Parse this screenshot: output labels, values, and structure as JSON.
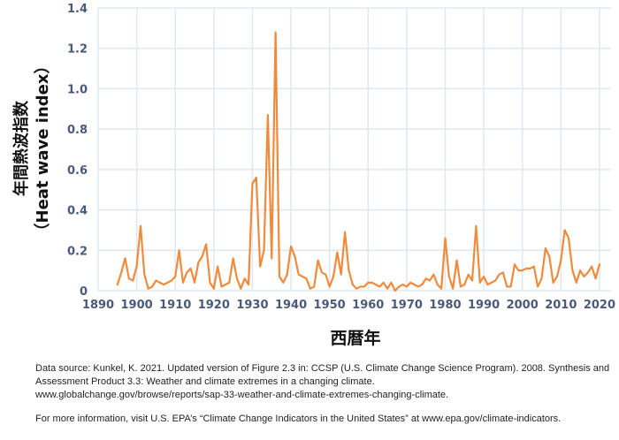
{
  "chart_data": {
    "type": "line",
    "title": "",
    "xlabel": "西暦年",
    "ylabel_line1": "年間熱波指数",
    "ylabel_line2": "（Heat wave index）",
    "xlim": [
      1890,
      2023
    ],
    "ylim": [
      0,
      1.4
    ],
    "xticks": [
      1890,
      1900,
      1910,
      1920,
      1930,
      1940,
      1950,
      1960,
      1970,
      1980,
      1990,
      2000,
      2010,
      2020
    ],
    "yticks": [
      0,
      0.2,
      0.4,
      0.6,
      0.8,
      1.0,
      1.2,
      1.4
    ],
    "ytick_labels": [
      "0",
      "0.2",
      "0.4",
      "0.6",
      "0.8",
      "1.0",
      "1.2",
      "1.4"
    ],
    "grid": true,
    "line_color": "#f08a3c",
    "grid_color": "#dfe8f0",
    "axis_label_color": "#4a5a7a",
    "x": [
      1895,
      1896,
      1897,
      1898,
      1899,
      1900,
      1901,
      1902,
      1903,
      1904,
      1905,
      1906,
      1907,
      1908,
      1909,
      1910,
      1911,
      1912,
      1913,
      1914,
      1915,
      1916,
      1917,
      1918,
      1919,
      1920,
      1921,
      1922,
      1923,
      1924,
      1925,
      1926,
      1927,
      1928,
      1929,
      1930,
      1931,
      1932,
      1933,
      1934,
      1935,
      1936,
      1937,
      1938,
      1939,
      1940,
      1941,
      1942,
      1943,
      1944,
      1945,
      1946,
      1947,
      1948,
      1949,
      1950,
      1951,
      1952,
      1953,
      1954,
      1955,
      1956,
      1957,
      1958,
      1959,
      1960,
      1961,
      1962,
      1963,
      1964,
      1965,
      1966,
      1967,
      1968,
      1969,
      1970,
      1971,
      1972,
      1973,
      1974,
      1975,
      1976,
      1977,
      1978,
      1979,
      1980,
      1981,
      1982,
      1983,
      1984,
      1985,
      1986,
      1987,
      1988,
      1989,
      1990,
      1991,
      1992,
      1993,
      1994,
      1995,
      1996,
      1997,
      1998,
      1999,
      2000,
      2001,
      2002,
      2003,
      2004,
      2005,
      2006,
      2007,
      2008,
      2009,
      2010,
      2011,
      2012,
      2013,
      2014,
      2015,
      2016,
      2017,
      2018,
      2019,
      2020
    ],
    "values": [
      0.03,
      0.09,
      0.16,
      0.06,
      0.05,
      0.12,
      0.32,
      0.08,
      0.01,
      0.02,
      0.05,
      0.04,
      0.03,
      0.04,
      0.05,
      0.07,
      0.2,
      0.04,
      0.09,
      0.11,
      0.04,
      0.14,
      0.17,
      0.23,
      0.04,
      0.01,
      0.12,
      0.02,
      0.03,
      0.04,
      0.16,
      0.06,
      0.01,
      0.06,
      0.03,
      0.53,
      0.56,
      0.12,
      0.2,
      0.87,
      0.16,
      1.28,
      0.07,
      0.04,
      0.08,
      0.22,
      0.17,
      0.08,
      0.07,
      0.06,
      0.01,
      0.02,
      0.15,
      0.09,
      0.08,
      0.02,
      0.07,
      0.19,
      0.08,
      0.29,
      0.1,
      0.03,
      0.01,
      0.02,
      0.02,
      0.04,
      0.04,
      0.03,
      0.02,
      0.04,
      0.01,
      0.04,
      0.0,
      0.02,
      0.03,
      0.02,
      0.04,
      0.03,
      0.02,
      0.03,
      0.06,
      0.05,
      0.08,
      0.03,
      0.01,
      0.26,
      0.07,
      0.01,
      0.15,
      0.02,
      0.03,
      0.08,
      0.05,
      0.32,
      0.04,
      0.07,
      0.03,
      0.04,
      0.05,
      0.08,
      0.09,
      0.02,
      0.02,
      0.13,
      0.1,
      0.1,
      0.11,
      0.11,
      0.12,
      0.02,
      0.06,
      0.21,
      0.17,
      0.04,
      0.07,
      0.15,
      0.3,
      0.26,
      0.1,
      0.04,
      0.1,
      0.07,
      0.09,
      0.12,
      0.06,
      0.13
    ]
  },
  "footer": {
    "source_line1": "Data source: Kunkel, K. 2021. Updated version of Figure 2.3 in: CCSP (U.S. Climate Change Science Program). 2008. Synthesis and",
    "source_line2": "Assessment Product 3.3: Weather and climate extremes in a changing climate.",
    "source_line3": "www.globalchange.gov/browse/reports/sap-33-weather-and-climate-extremes-changing-climate.",
    "more_info": "For more information, visit U.S. EPA’s “Climate Change Indicators in the United States” at www.epa.gov/climate-indicators."
  }
}
